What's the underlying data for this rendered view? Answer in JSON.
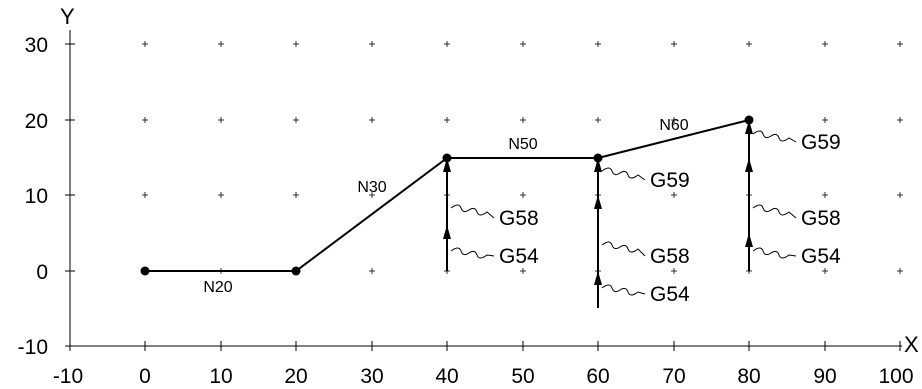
{
  "axes": {
    "x_title": "X",
    "y_title": "Y",
    "x_ticks": [
      "-10",
      "0",
      "10",
      "20",
      "30",
      "40",
      "50",
      "60",
      "70",
      "80",
      "90",
      "100"
    ],
    "y_ticks": [
      "30",
      "20",
      "10",
      "0",
      "-10"
    ]
  },
  "toolpath": {
    "points": [
      [
        0,
        0
      ],
      [
        20,
        0
      ],
      [
        40,
        15
      ],
      [
        60,
        15
      ],
      [
        80,
        20
      ]
    ],
    "segments": [
      "N20",
      "N30",
      "N50",
      "N60"
    ]
  },
  "offsets": {
    "x40": [
      "G54",
      "G58"
    ],
    "x60": [
      "G54",
      "G58",
      "G59"
    ],
    "x80": [
      "G54",
      "G58",
      "G59"
    ]
  }
}
